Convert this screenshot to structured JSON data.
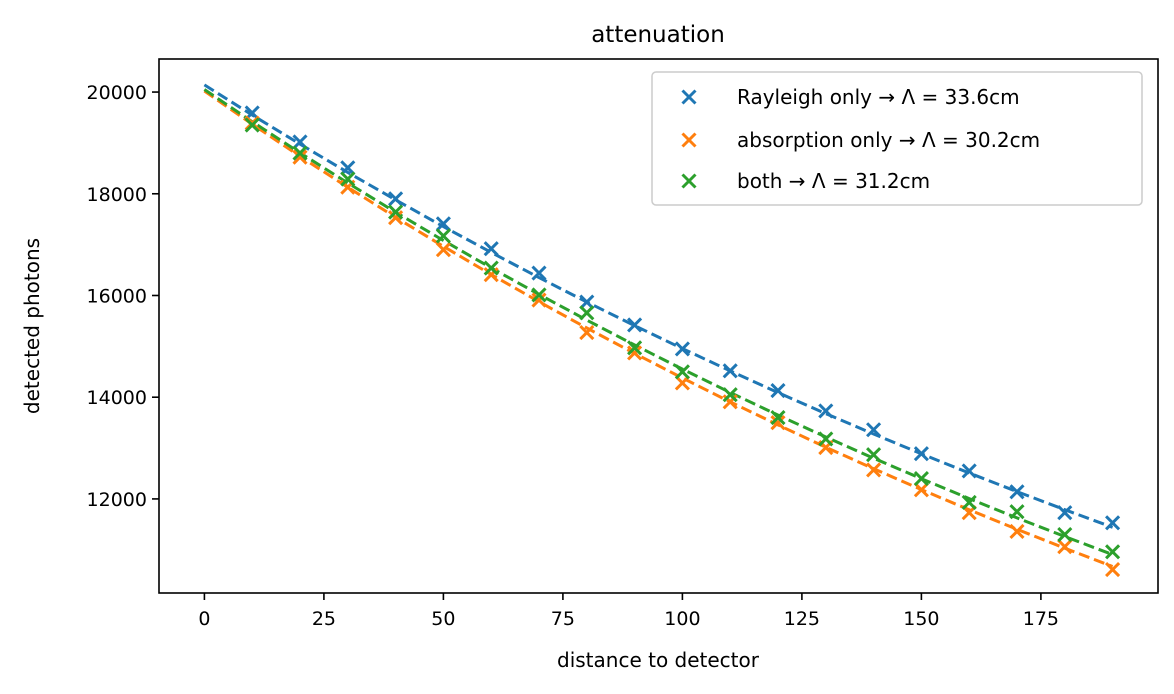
{
  "chart_data": {
    "type": "scatter",
    "title": "attenuation",
    "xlabel": "distance to detector",
    "ylabel": "detected photons",
    "xlim": [
      -9.5,
      199.5
    ],
    "ylim": [
      10150,
      20650
    ],
    "xticks": [
      0,
      25,
      50,
      75,
      100,
      125,
      150,
      175
    ],
    "xtick_labels": [
      "0",
      "25",
      "50",
      "75",
      "100",
      "125",
      "150",
      "175"
    ],
    "yticks": [
      12000,
      14000,
      16000,
      18000,
      20000
    ],
    "ytick_labels": [
      "12000",
      "14000",
      "16000",
      "18000",
      "20000"
    ],
    "grid": false,
    "legend_position": "top-right",
    "x": [
      10,
      20,
      30,
      40,
      50,
      60,
      70,
      80,
      90,
      100,
      110,
      120,
      130,
      140,
      150,
      160,
      170,
      180,
      190
    ],
    "series": [
      {
        "name": "Rayleigh only → Λ = 33.6cm",
        "color": "#1f77b4",
        "marker": "x",
        "values": [
          19590,
          19020,
          18510,
          17900,
          17410,
          16920,
          16440,
          15870,
          15420,
          14950,
          14520,
          14130,
          13730,
          13360,
          12890,
          12550,
          12140,
          11730,
          11530
        ],
        "fit": {
          "line_style": "dashed",
          "N0": 20140,
          "lambda_cm": 33.6
        }
      },
      {
        "name": "absorption only → Λ = 30.2cm",
        "color": "#ff7f0e",
        "marker": "x",
        "values": [
          19390,
          18720,
          18130,
          17530,
          16900,
          16410,
          15910,
          15270,
          14870,
          14280,
          13910,
          13500,
          13010,
          12570,
          12180,
          11730,
          11360,
          11060,
          10610
        ],
        "fit": {
          "line_style": "dashed",
          "N0": 20020,
          "lambda_cm": 30.2
        }
      },
      {
        "name": "both → Λ = 31.2cm",
        "color": "#2ca02c",
        "marker": "x",
        "values": [
          19350,
          18800,
          18290,
          17640,
          17170,
          16540,
          16010,
          15660,
          14970,
          14500,
          14050,
          13600,
          13180,
          12870,
          12400,
          11930,
          11750,
          11300,
          10960
        ],
        "fit": {
          "line_style": "dashed",
          "N0": 20050,
          "lambda_cm": 31.2
        }
      }
    ],
    "fit_x": [
      0,
      10,
      20,
      30,
      40,
      50,
      60,
      70,
      80,
      90,
      100,
      110,
      120,
      130,
      140,
      150,
      160,
      170,
      180,
      190
    ]
  }
}
